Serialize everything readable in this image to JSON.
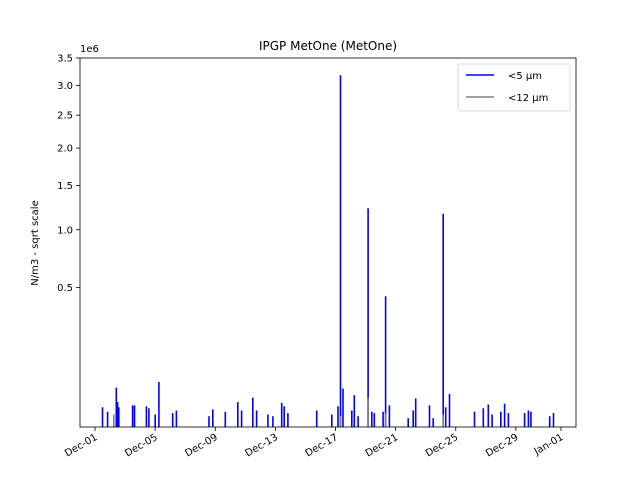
{
  "chart_data": {
    "type": "line",
    "title": "IPGP MetOne (MetOne)",
    "ylabel": "N/m3 - sqrt scale",
    "y_scale": "sqrt",
    "y_offset_text": "1e6",
    "ylim": [
      0,
      3.5
    ],
    "y_ticks": [
      0.5,
      1.0,
      1.5,
      2.0,
      2.5,
      3.0,
      3.5
    ],
    "y_tick_labels": [
      "0.5",
      "1.0",
      "1.5",
      "2.0",
      "2.5",
      "3.0",
      "3.5"
    ],
    "xlim": [
      "2021-11-30",
      "2022-01-02"
    ],
    "x_ticks": [
      "2021-12-01",
      "2021-12-05",
      "2021-12-09",
      "2021-12-13",
      "2021-12-17",
      "2021-12-21",
      "2021-12-25",
      "2021-12-29",
      "2022-01-01"
    ],
    "x_tick_labels": [
      "Dec-01",
      "Dec-05",
      "Dec-09",
      "Dec-13",
      "Dec-17",
      "Dec-21",
      "Dec-25",
      "Dec-29",
      "Jan-01"
    ],
    "legend_position": "top-right",
    "grid": false,
    "series": [
      {
        "name": "<5 µm",
        "color": "#0000ff",
        "spikes": [
          [
            "2021-12-01 12:00",
            0.01
          ],
          [
            "2021-12-01 20:00",
            0.006
          ],
          [
            "2021-12-02 10:00",
            0.04
          ],
          [
            "2021-12-02 12:00",
            0.016
          ],
          [
            "2021-12-02 14:00",
            0.01
          ],
          [
            "2021-12-03 12:00",
            0.012
          ],
          [
            "2021-12-03 15:00",
            0.012
          ],
          [
            "2021-12-04 10:00",
            0.011
          ],
          [
            "2021-12-04 14:00",
            0.009
          ],
          [
            "2021-12-05 00:00",
            0.004
          ],
          [
            "2021-12-05 06:00",
            0.052
          ],
          [
            "2021-12-06 04:00",
            0.005
          ],
          [
            "2021-12-06 10:00",
            0.007
          ],
          [
            "2021-12-08 14:00",
            0.003
          ],
          [
            "2021-12-08 20:00",
            0.008
          ],
          [
            "2021-12-09 16:00",
            0.006
          ],
          [
            "2021-12-10 12:00",
            0.016
          ],
          [
            "2021-12-10 18:00",
            0.007
          ],
          [
            "2021-12-11 12:00",
            0.022
          ],
          [
            "2021-12-11 18:00",
            0.007
          ],
          [
            "2021-12-12 12:00",
            0.004
          ],
          [
            "2021-12-12 20:00",
            0.003
          ],
          [
            "2021-12-13 10:00",
            0.015
          ],
          [
            "2021-12-13 14:00",
            0.011
          ],
          [
            "2021-12-13 20:00",
            0.005
          ],
          [
            "2021-12-15 18:00",
            0.007
          ],
          [
            "2021-12-16 18:00",
            0.004
          ],
          [
            "2021-12-17 04:00",
            0.011
          ],
          [
            "2021-12-17 08:00",
            3.18
          ],
          [
            "2021-12-17 12:00",
            0.038
          ],
          [
            "2021-12-18 02:00",
            0.007
          ],
          [
            "2021-12-18 06:00",
            0.026
          ],
          [
            "2021-12-18 12:00",
            0.003
          ],
          [
            "2021-12-19 04:00",
            1.23
          ],
          [
            "2021-12-19 10:00",
            0.006
          ],
          [
            "2021-12-19 14:00",
            0.005
          ],
          [
            "2021-12-20 04:00",
            0.006
          ],
          [
            "2021-12-20 08:00",
            0.44
          ],
          [
            "2021-12-20 14:00",
            0.012
          ],
          [
            "2021-12-21 20:00",
            0.002
          ],
          [
            "2021-12-22 04:00",
            0.007
          ],
          [
            "2021-12-22 08:00",
            0.021
          ],
          [
            "2021-12-23 06:00",
            0.012
          ],
          [
            "2021-12-23 12:00",
            0.002
          ],
          [
            "2021-12-24 04:00",
            1.17
          ],
          [
            "2021-12-24 08:00",
            0.01
          ],
          [
            "2021-12-24 14:00",
            0.028
          ],
          [
            "2021-12-26 06:00",
            0.006
          ],
          [
            "2021-12-26 20:00",
            0.009
          ],
          [
            "2021-12-27 04:00",
            0.013
          ],
          [
            "2021-12-27 10:00",
            0.004
          ],
          [
            "2021-12-28 00:00",
            0.006
          ],
          [
            "2021-12-28 06:00",
            0.014
          ],
          [
            "2021-12-28 12:00",
            0.005
          ],
          [
            "2021-12-29 14:00",
            0.005
          ],
          [
            "2021-12-29 20:00",
            0.007
          ],
          [
            "2021-12-30 00:00",
            0.006
          ],
          [
            "2021-12-31 06:00",
            0.003
          ],
          [
            "2021-12-31 12:00",
            0.005
          ]
        ]
      },
      {
        "name": "<12 µm",
        "color": "#808080",
        "spikes": [
          [
            "2021-12-02 06:00",
            0.004
          ],
          [
            "2021-12-17 08:00",
            0.003
          ],
          [
            "2021-12-19 04:00",
            0.022
          ],
          [
            "2021-12-20 08:00",
            0.005
          ],
          [
            "2021-12-24 04:00",
            0.004
          ]
        ]
      }
    ]
  }
}
